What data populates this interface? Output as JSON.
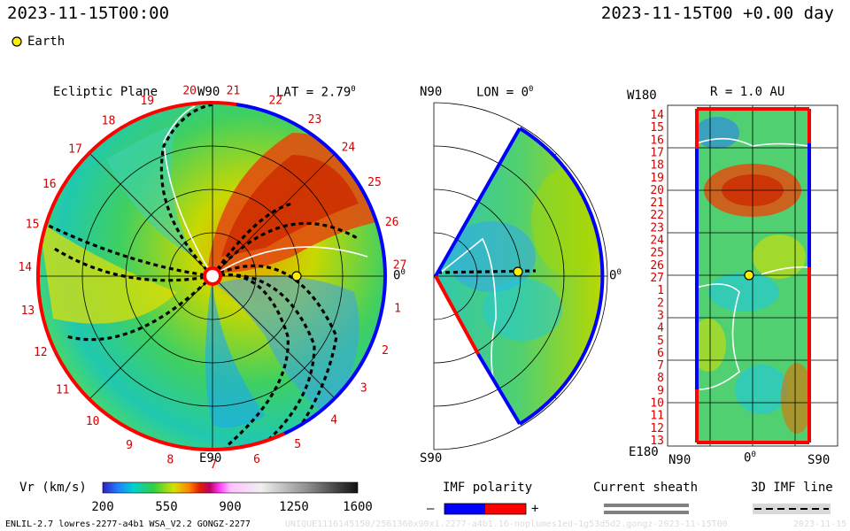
{
  "header": {
    "left_timestamp": "2023-11-15T00:00",
    "right_timestamp": "2023-11-15T00 +0.00 day",
    "earth_legend": "Earth"
  },
  "panels": {
    "ecliptic": {
      "title": "Ecliptic Plane",
      "lat_label": "LAT = 2.79",
      "lat_sup": "0",
      "top_axis": "W90",
      "bottom_axis": "E90",
      "right_axis": "0",
      "right_sup": "0",
      "carrington_labels": [
        "20",
        "21",
        "22",
        "23",
        "24",
        "25",
        "26",
        "27",
        "1",
        "2",
        "3",
        "4",
        "5",
        "6",
        "7",
        "8",
        "9",
        "10",
        "11",
        "12",
        "13",
        "14",
        "15",
        "16",
        "17",
        "18",
        "19"
      ]
    },
    "meridional": {
      "top_label": "N90",
      "lon_label": "LON = 0",
      "lon_sup": "0",
      "bottom_label": "S90",
      "right_label": "0",
      "right_sup": "0"
    },
    "radial": {
      "top_left": "W180",
      "r_label": "R = 1.0 AU",
      "bottom_left": "E180",
      "bottom_n": "N90",
      "bottom_mid": "0",
      "bottom_mid_sup": "0",
      "bottom_s": "S90",
      "y_labels": [
        "14",
        "15",
        "16",
        "17",
        "18",
        "19",
        "20",
        "21",
        "22",
        "23",
        "24",
        "25",
        "26",
        "27",
        "1",
        "2",
        "3",
        "4",
        "5",
        "6",
        "7",
        "8",
        "9",
        "10",
        "11",
        "12",
        "13"
      ]
    }
  },
  "colorbar": {
    "label": "Vr (km/s)",
    "ticks": [
      "200",
      "550",
      "900",
      "1250",
      "1600"
    ],
    "min": 200,
    "max": 1600
  },
  "legends": {
    "imf_title": "IMF polarity",
    "imf_minus": "–",
    "imf_plus": "+",
    "sheath_title": "Current sheath",
    "imf_line_title": "3D IMF line"
  },
  "footer": {
    "model_info": "ENLIL-2.7 lowres-2277-a4b1 WSA_V2.2 GONGZ-2277",
    "faint_id": "UNIQUE1116145150/2561360x90x1.2277-a4b1.16-noplumes1ed-1g53d5d2.gongz-2023-11-15T00",
    "faint_date": "2023-11-15"
  },
  "colors": {
    "red_polarity": "#ff0000",
    "blue_polarity": "#0000ff",
    "earth": "#ffee00",
    "carrington_label": "#d40000"
  },
  "chart_data": {
    "type": "heatmap",
    "quantity": "Vr (km/s)",
    "range": [
      200,
      1600
    ],
    "earth": {
      "lat_deg": 2.79,
      "lon_deg": 0,
      "r_au": 1.0
    }
  }
}
